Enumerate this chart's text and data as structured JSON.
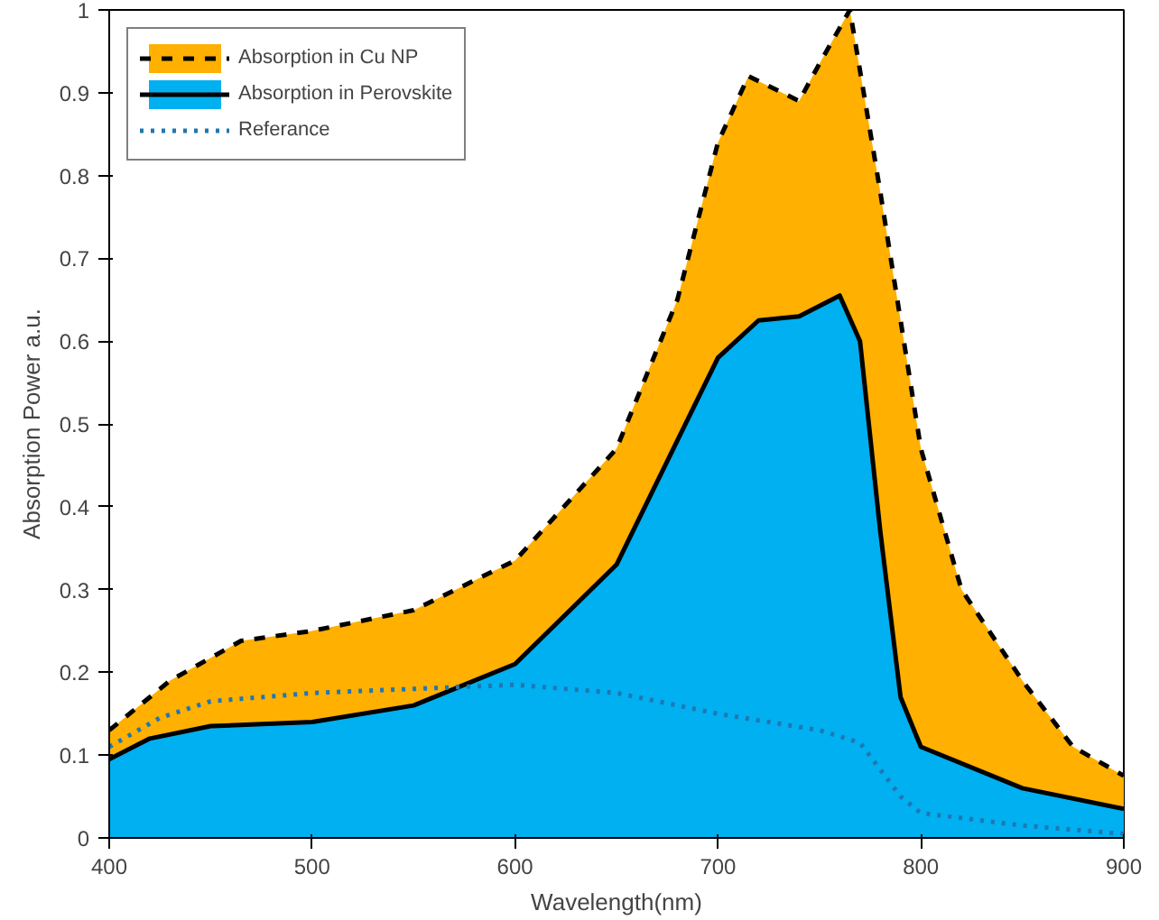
{
  "chart_data": {
    "type": "area",
    "xlabel": "Wavelength(nm)",
    "ylabel": "Absorption Power a.u.",
    "xlim": [
      400,
      900
    ],
    "ylim": [
      0,
      1
    ],
    "xticks": [
      400,
      500,
      600,
      700,
      800,
      900
    ],
    "yticks": [
      0,
      0.1,
      0.2,
      0.3,
      0.4,
      0.5,
      0.6,
      0.7,
      0.8,
      0.9,
      1
    ],
    "grid": false,
    "legend": "top left",
    "series": [
      {
        "name": "Absorption in Cu NP",
        "color": "#ffb000",
        "line_style": "dashed",
        "x": [
          400,
          430,
          465,
          500,
          550,
          600,
          650,
          680,
          700,
          715,
          740,
          750,
          765,
          780,
          800,
          820,
          850,
          875,
          900
        ],
        "values": [
          0.13,
          0.19,
          0.238,
          0.25,
          0.275,
          0.335,
          0.47,
          0.65,
          0.84,
          0.92,
          0.89,
          0.935,
          1.0,
          0.78,
          0.47,
          0.3,
          0.19,
          0.11,
          0.075
        ]
      },
      {
        "name": "Absorption in Perovskite",
        "color": "#00b0f0",
        "line_style": "solid",
        "x": [
          400,
          420,
          450,
          500,
          550,
          600,
          650,
          680,
          700,
          720,
          740,
          760,
          770,
          780,
          790,
          800,
          850,
          900
        ],
        "values": [
          0.095,
          0.12,
          0.135,
          0.14,
          0.16,
          0.21,
          0.33,
          0.48,
          0.58,
          0.625,
          0.63,
          0.655,
          0.6,
          0.37,
          0.17,
          0.11,
          0.06,
          0.035
        ]
      },
      {
        "name": "Referance",
        "type": "line",
        "color": "#1f77b4",
        "line_style": "dotted",
        "x": [
          400,
          425,
          450,
          500,
          550,
          600,
          650,
          700,
          750,
          770,
          790,
          800,
          850,
          900
        ],
        "values": [
          0.11,
          0.145,
          0.165,
          0.175,
          0.18,
          0.185,
          0.175,
          0.15,
          0.13,
          0.115,
          0.05,
          0.03,
          0.015,
          0.005
        ]
      }
    ]
  }
}
